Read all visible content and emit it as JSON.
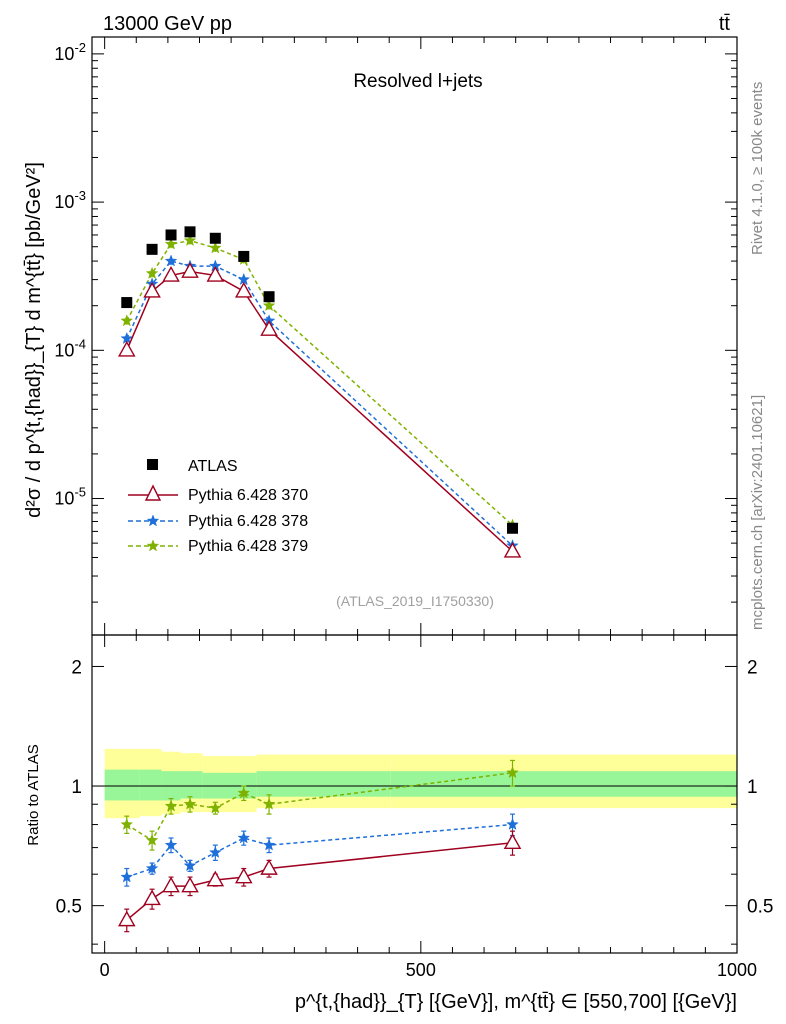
{
  "header": {
    "energy_label": "13000 GeV pp",
    "process_label": "tt̄",
    "plot_title": "Resolved l+jets",
    "analysis_id": "(ATLAS_2019_I1750330)",
    "side_rivet": "Rivet 4.1.0, ≥ 100k events",
    "side_site": "mcplots.cern.ch [arXiv:2401.10621]"
  },
  "axes": {
    "main_ylabel": "d²σ / d p^{t,{had}}_{T} d m^{tt̄} [pb/GeV²]",
    "ratio_ylabel": "Ratio to ATLAS",
    "xlabel": "p^{t,{had}}_{T} [{GeV}], m^{tt̄} ∈ [550,700] [{GeV}]",
    "x_ticks": [
      "0",
      "500",
      "1000"
    ],
    "main_y_ticks": [
      "10^-5",
      "10^-4",
      "10^-3",
      "10^-2"
    ],
    "ratio_y_ticks": [
      "0.5",
      "1",
      "2"
    ]
  },
  "legend": {
    "atlas": "ATLAS",
    "s370": "Pythia 6.428 370",
    "s378": "Pythia 6.428 378",
    "s379": "Pythia 6.428 379"
  },
  "chart_data": {
    "type": "scatter",
    "title": "Resolved l+jets",
    "xlim": [
      -20,
      1000
    ],
    "ylim": [
      1.2e-06,
      0.013
    ],
    "yscale": "log",
    "ratio_ylim": [
      0.38,
      2.4
    ],
    "x": [
      35,
      75,
      105,
      135,
      175,
      220,
      260,
      645
    ],
    "series": [
      {
        "name": "ATLAS",
        "color": "#000000",
        "marker": "square",
        "values": [
          0.00021,
          0.00048,
          0.0006,
          0.00063,
          0.00057,
          0.00043,
          0.00023,
          6.3e-06
        ],
        "ratio": [
          1,
          1,
          1,
          1,
          1,
          1,
          1,
          1
        ],
        "band_inner": [
          [
            0.92,
            1.1
          ],
          [
            0.92,
            1.1
          ],
          [
            0.92,
            1.09
          ],
          [
            0.93,
            1.09
          ],
          [
            0.93,
            1.08
          ],
          [
            0.93,
            1.08
          ],
          [
            0.94,
            1.09
          ],
          [
            0.94,
            1.09
          ]
        ],
        "band_outer": [
          [
            0.83,
            1.24
          ],
          [
            0.84,
            1.24
          ],
          [
            0.85,
            1.22
          ],
          [
            0.86,
            1.21
          ],
          [
            0.86,
            1.19
          ],
          [
            0.86,
            1.19
          ],
          [
            0.88,
            1.2
          ],
          [
            0.88,
            1.2
          ]
        ]
      },
      {
        "name": "Pythia 6.428 370",
        "color": "#a0001f",
        "marker": "triangle-open",
        "line": "solid",
        "values": [
          0.0001,
          0.00025,
          0.00032,
          0.00034,
          0.00032,
          0.00025,
          0.000138,
          4.4e-06
        ],
        "ratio": [
          0.46,
          0.52,
          0.56,
          0.56,
          0.58,
          0.59,
          0.62,
          0.72
        ],
        "ratio_err": [
          0.03,
          0.03,
          0.03,
          0.03,
          0.02,
          0.03,
          0.03,
          0.05
        ]
      },
      {
        "name": "Pythia 6.428 378",
        "color": "#1e6fd9",
        "marker": "star",
        "line": "dashed",
        "values": [
          0.00012,
          0.00028,
          0.0004,
          0.00037,
          0.00037,
          0.0003,
          0.000158,
          4.8e-06
        ],
        "ratio": [
          0.59,
          0.62,
          0.71,
          0.63,
          0.68,
          0.74,
          0.71,
          0.8
        ],
        "ratio_err": [
          0.03,
          0.02,
          0.03,
          0.02,
          0.03,
          0.03,
          0.03,
          0.05
        ]
      },
      {
        "name": "Pythia 6.428 379",
        "color": "#7fb200",
        "marker": "star",
        "line": "dashed",
        "values": [
          0.000158,
          0.00033,
          0.00052,
          0.00055,
          0.00049,
          0.00041,
          0.0002,
          6.6e-06
        ],
        "ratio": [
          0.8,
          0.73,
          0.89,
          0.9,
          0.88,
          0.96,
          0.9,
          1.08
        ],
        "ratio_err": [
          0.04,
          0.04,
          0.04,
          0.04,
          0.03,
          0.04,
          0.05,
          0.08
        ]
      }
    ]
  }
}
